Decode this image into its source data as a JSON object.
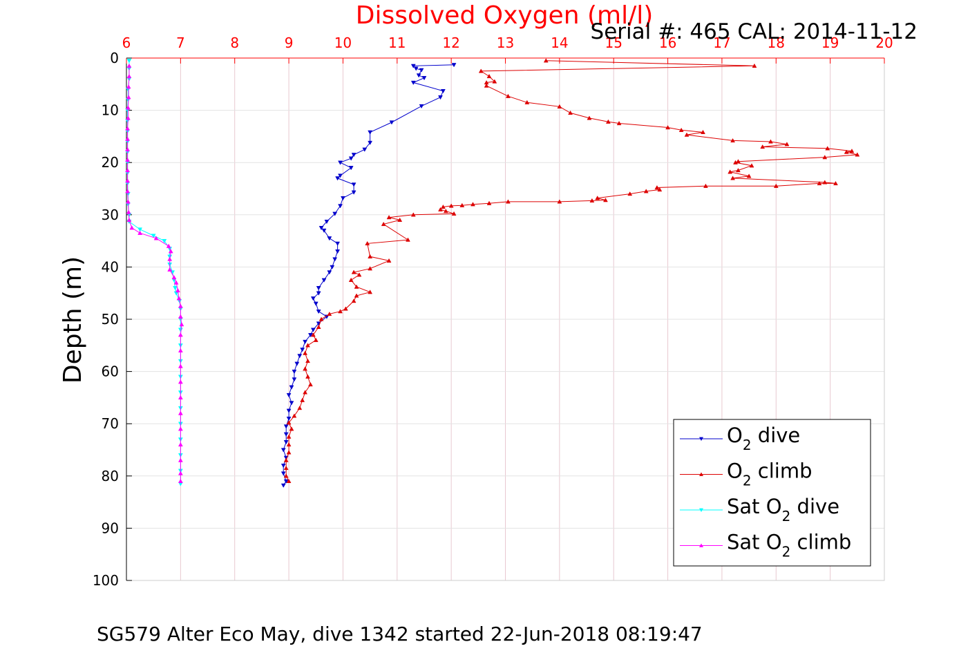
{
  "title": "Dissolved Oxygen (ml/l)",
  "serial_text": "Serial #: 465  CAL: 2014-11-12",
  "footer": "SG579 Alter Eco May, dive 1342 started 22-Jun-2018 08:19:47",
  "colors": {
    "o2_dive": "#0000cc",
    "o2_climb": "#dd0000",
    "sat_dive": "#00ffff",
    "sat_climb": "#ff00ff",
    "axis_top": "#ff0000",
    "grid": "#e8c8d0"
  },
  "legend": {
    "items": [
      {
        "prefix": "O",
        "sub": "2",
        "suffix": " dive",
        "color": "#0000cc",
        "marker": "down"
      },
      {
        "prefix": "O",
        "sub": "2",
        "suffix": " climb",
        "color": "#dd0000",
        "marker": "up"
      },
      {
        "prefix": "Sat O",
        "sub": "2",
        "suffix": " dive",
        "color": "#00ffff",
        "marker": "down"
      },
      {
        "prefix": "Sat O",
        "sub": "2",
        "suffix": " climb",
        "color": "#ff00ff",
        "marker": "up"
      }
    ]
  },
  "chart_data": {
    "type": "line",
    "title": "Dissolved Oxygen (ml/l)",
    "xlabel": "",
    "ylabel": "Depth (m)",
    "xlim": [
      6,
      20
    ],
    "ylim": [
      0,
      100
    ],
    "y_reversed": true,
    "x_axis_position": "top",
    "x_ticks": [
      "6",
      "7",
      "8",
      "9",
      "10",
      "11",
      "12",
      "13",
      "14",
      "15",
      "16",
      "17",
      "18",
      "19",
      "20"
    ],
    "y_ticks": [
      "0",
      "10",
      "20",
      "30",
      "40",
      "50",
      "60",
      "70",
      "80",
      "90",
      "100"
    ],
    "grid": true,
    "legend_position": "bottom-right",
    "series": [
      {
        "name": "O2 dive",
        "marker": "down-triangle",
        "color": "#0000cc",
        "points": [
          [
            12.05,
            1.3
          ],
          [
            11.3,
            1.5
          ],
          [
            11.35,
            2.0
          ],
          [
            11.45,
            2.3
          ],
          [
            11.4,
            3.3
          ],
          [
            11.5,
            3.8
          ],
          [
            11.3,
            4.7
          ],
          [
            11.85,
            6.3
          ],
          [
            11.8,
            7.5
          ],
          [
            11.45,
            9.2
          ],
          [
            10.9,
            12.3
          ],
          [
            10.5,
            14.2
          ],
          [
            10.5,
            16.2
          ],
          [
            10.4,
            17.5
          ],
          [
            10.2,
            18.5
          ],
          [
            10.15,
            19.2
          ],
          [
            9.95,
            20.0
          ],
          [
            10.15,
            21.0
          ],
          [
            9.95,
            22.5
          ],
          [
            9.9,
            23.0
          ],
          [
            10.2,
            24.2
          ],
          [
            10.2,
            25.7
          ],
          [
            10.0,
            26.8
          ],
          [
            9.95,
            28.3
          ],
          [
            9.85,
            29.8
          ],
          [
            9.7,
            31.3
          ],
          [
            9.6,
            32.5
          ],
          [
            9.65,
            33.0
          ],
          [
            9.75,
            34.5
          ],
          [
            9.9,
            35.5
          ],
          [
            9.9,
            37.0
          ],
          [
            9.85,
            38.5
          ],
          [
            9.8,
            40.0
          ],
          [
            9.75,
            41.0
          ],
          [
            9.65,
            42.5
          ],
          [
            9.55,
            44.0
          ],
          [
            9.55,
            45.0
          ],
          [
            9.45,
            46.0
          ],
          [
            9.5,
            47.0
          ],
          [
            9.55,
            48.5
          ],
          [
            9.7,
            49.5
          ],
          [
            9.55,
            50.8
          ],
          [
            9.45,
            52.0
          ],
          [
            9.4,
            53.0
          ],
          [
            9.3,
            54.3
          ],
          [
            9.25,
            55.8
          ],
          [
            9.2,
            57.0
          ],
          [
            9.15,
            58.5
          ],
          [
            9.1,
            60.0
          ],
          [
            9.1,
            61.5
          ],
          [
            9.05,
            63.0
          ],
          [
            9.0,
            64.5
          ],
          [
            9.05,
            66.0
          ],
          [
            9.0,
            67.5
          ],
          [
            9.0,
            69.0
          ],
          [
            8.95,
            70.5
          ],
          [
            8.95,
            72.0
          ],
          [
            8.95,
            73.5
          ],
          [
            8.9,
            75.0
          ],
          [
            8.95,
            76.5
          ],
          [
            8.9,
            78.0
          ],
          [
            8.9,
            79.5
          ],
          [
            8.95,
            81.0
          ],
          [
            8.9,
            81.8
          ]
        ]
      },
      {
        "name": "O2 climb",
        "marker": "up-triangle",
        "color": "#dd0000",
        "points": [
          [
            9.0,
            81.0
          ],
          [
            8.95,
            80.0
          ],
          [
            8.95,
            78.5
          ],
          [
            8.95,
            77.0
          ],
          [
            9.0,
            75.5
          ],
          [
            9.0,
            74.0
          ],
          [
            9.0,
            72.5
          ],
          [
            9.05,
            71.0
          ],
          [
            9.0,
            69.8
          ],
          [
            9.1,
            68.5
          ],
          [
            9.2,
            67.0
          ],
          [
            9.25,
            65.5
          ],
          [
            9.3,
            64.0
          ],
          [
            9.4,
            62.5
          ],
          [
            9.35,
            61.0
          ],
          [
            9.3,
            59.5
          ],
          [
            9.35,
            58.0
          ],
          [
            9.3,
            56.5
          ],
          [
            9.35,
            55.0
          ],
          [
            9.5,
            54.0
          ],
          [
            9.45,
            53.0
          ],
          [
            9.55,
            51.5
          ],
          [
            9.6,
            50.0
          ],
          [
            9.75,
            49.0
          ],
          [
            9.95,
            48.5
          ],
          [
            10.05,
            48.0
          ],
          [
            10.2,
            46.5
          ],
          [
            10.25,
            45.5
          ],
          [
            10.5,
            44.8
          ],
          [
            10.25,
            43.8
          ],
          [
            10.15,
            42.5
          ],
          [
            10.3,
            41.5
          ],
          [
            10.2,
            41.0
          ],
          [
            10.5,
            40.3
          ],
          [
            10.85,
            38.8
          ],
          [
            10.5,
            38.0
          ],
          [
            10.45,
            35.5
          ],
          [
            11.2,
            34.8
          ],
          [
            10.75,
            31.8
          ],
          [
            11.05,
            31.0
          ],
          [
            10.85,
            30.5
          ],
          [
            11.3,
            30.0
          ],
          [
            12.05,
            29.8
          ],
          [
            11.9,
            29.3
          ],
          [
            11.8,
            29.0
          ],
          [
            11.85,
            28.5
          ],
          [
            12.0,
            28.3
          ],
          [
            12.2,
            28.2
          ],
          [
            12.4,
            28.0
          ],
          [
            12.7,
            27.8
          ],
          [
            13.05,
            27.5
          ],
          [
            14.0,
            27.5
          ],
          [
            14.6,
            27.3
          ],
          [
            14.85,
            27.2
          ],
          [
            14.7,
            26.8
          ],
          [
            15.3,
            26.0
          ],
          [
            15.6,
            25.5
          ],
          [
            15.85,
            25.2
          ],
          [
            15.8,
            24.8
          ],
          [
            16.7,
            24.5
          ],
          [
            18.0,
            24.5
          ],
          [
            18.8,
            24.0
          ],
          [
            19.1,
            24.0
          ],
          [
            18.9,
            23.8
          ],
          [
            17.2,
            23.0
          ],
          [
            17.5,
            22.6
          ],
          [
            17.15,
            21.8
          ],
          [
            17.3,
            21.5
          ],
          [
            17.55,
            20.6
          ],
          [
            17.25,
            20.0
          ],
          [
            17.3,
            19.8
          ],
          [
            18.9,
            19.0
          ],
          [
            19.5,
            18.5
          ],
          [
            19.3,
            18.0
          ],
          [
            19.4,
            17.8
          ],
          [
            18.95,
            17.3
          ],
          [
            17.75,
            17.0
          ],
          [
            18.2,
            16.5
          ],
          [
            17.9,
            16.0
          ],
          [
            17.2,
            15.8
          ],
          [
            16.35,
            14.7
          ],
          [
            16.65,
            14.2
          ],
          [
            16.25,
            13.8
          ],
          [
            16.0,
            13.3
          ],
          [
            15.1,
            12.5
          ],
          [
            14.9,
            12.2
          ],
          [
            14.55,
            11.5
          ],
          [
            14.2,
            10.5
          ],
          [
            14.0,
            9.3
          ],
          [
            13.4,
            8.5
          ],
          [
            13.05,
            7.3
          ],
          [
            12.65,
            5.3
          ],
          [
            12.65,
            4.7
          ],
          [
            12.8,
            4.5
          ],
          [
            12.7,
            3.5
          ],
          [
            12.55,
            2.5
          ],
          [
            17.6,
            1.5
          ],
          [
            13.75,
            0.5
          ]
        ]
      },
      {
        "name": "Sat O2 dive",
        "marker": "down-triangle",
        "color": "#00ffff",
        "points": [
          [
            6.05,
            0.5
          ],
          [
            6.05,
            2.0
          ],
          [
            6.05,
            4.0
          ],
          [
            6.03,
            6.0
          ],
          [
            6.03,
            8.0
          ],
          [
            6.02,
            10.0
          ],
          [
            6.02,
            12.0
          ],
          [
            6.02,
            14.0
          ],
          [
            6.02,
            16.0
          ],
          [
            6.02,
            18.0
          ],
          [
            6.02,
            20.0
          ],
          [
            6.02,
            22.0
          ],
          [
            6.02,
            24.0
          ],
          [
            6.03,
            26.0
          ],
          [
            6.03,
            28.0
          ],
          [
            6.05,
            30.0
          ],
          [
            6.05,
            31.3
          ],
          [
            6.25,
            32.8
          ],
          [
            6.5,
            34.0
          ],
          [
            6.7,
            35.0
          ],
          [
            6.8,
            36.5
          ],
          [
            6.8,
            38.0
          ],
          [
            6.8,
            39.5
          ],
          [
            6.85,
            41.0
          ],
          [
            6.88,
            42.5
          ],
          [
            6.9,
            44.0
          ],
          [
            6.92,
            45.0
          ],
          [
            6.98,
            46.5
          ],
          [
            7.0,
            48.0
          ],
          [
            7.0,
            50.0
          ],
          [
            7.0,
            52.0
          ],
          [
            7.0,
            55.0
          ],
          [
            7.0,
            58.0
          ],
          [
            7.0,
            61.0
          ],
          [
            7.0,
            64.0
          ],
          [
            7.0,
            67.0
          ],
          [
            7.0,
            70.0
          ],
          [
            7.0,
            73.0
          ],
          [
            7.0,
            76.0
          ],
          [
            7.0,
            79.0
          ],
          [
            7.0,
            81.5
          ]
        ]
      },
      {
        "name": "Sat O2 climb",
        "marker": "up-triangle",
        "color": "#ff00ff",
        "points": [
          [
            7.0,
            81.0
          ],
          [
            7.0,
            79.5
          ],
          [
            7.0,
            77.0
          ],
          [
            7.0,
            74.0
          ],
          [
            7.0,
            71.0
          ],
          [
            7.0,
            68.0
          ],
          [
            7.0,
            65.0
          ],
          [
            7.0,
            62.0
          ],
          [
            7.0,
            59.0
          ],
          [
            7.0,
            56.0
          ],
          [
            7.0,
            53.0
          ],
          [
            7.02,
            51.0
          ],
          [
            7.0,
            49.5
          ],
          [
            7.0,
            47.5
          ],
          [
            6.97,
            46.0
          ],
          [
            6.95,
            44.5
          ],
          [
            6.92,
            43.0
          ],
          [
            6.88,
            42.0
          ],
          [
            6.8,
            40.5
          ],
          [
            6.8,
            38.5
          ],
          [
            6.82,
            37.0
          ],
          [
            6.78,
            36.0
          ],
          [
            6.55,
            34.5
          ],
          [
            6.25,
            33.5
          ],
          [
            6.1,
            32.5
          ],
          [
            6.05,
            31.0
          ],
          [
            6.04,
            29.5
          ],
          [
            6.03,
            27.5
          ],
          [
            6.02,
            25.5
          ],
          [
            6.02,
            23.5
          ],
          [
            6.02,
            21.5
          ],
          [
            6.02,
            19.5
          ],
          [
            6.02,
            17.5
          ],
          [
            6.02,
            15.5
          ],
          [
            6.02,
            13.5
          ],
          [
            6.03,
            11.5
          ],
          [
            6.03,
            9.5
          ],
          [
            6.04,
            7.5
          ],
          [
            6.04,
            5.5
          ],
          [
            6.05,
            3.5
          ],
          [
            6.05,
            1.5
          ]
        ]
      }
    ]
  }
}
